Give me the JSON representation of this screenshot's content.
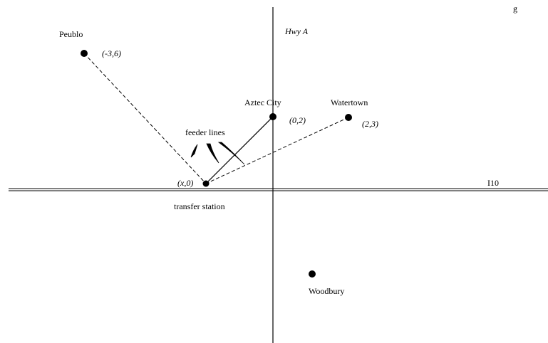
{
  "header_fragment": "g",
  "axes": {
    "vertical_label": "Hwy A",
    "horizontal_label": "I10"
  },
  "cities": [
    {
      "name": "Peublo",
      "coords": "(-3,6)"
    },
    {
      "name": "Aztec City",
      "coords": "(0,2)"
    },
    {
      "name": "Watertown",
      "coords": "(2,3)"
    },
    {
      "name": "Woodbury",
      "coords": ""
    }
  ],
  "station": {
    "name": "transfer station",
    "coords": "(x,0)"
  },
  "annotation": {
    "feeder_label": "feeder lines"
  }
}
